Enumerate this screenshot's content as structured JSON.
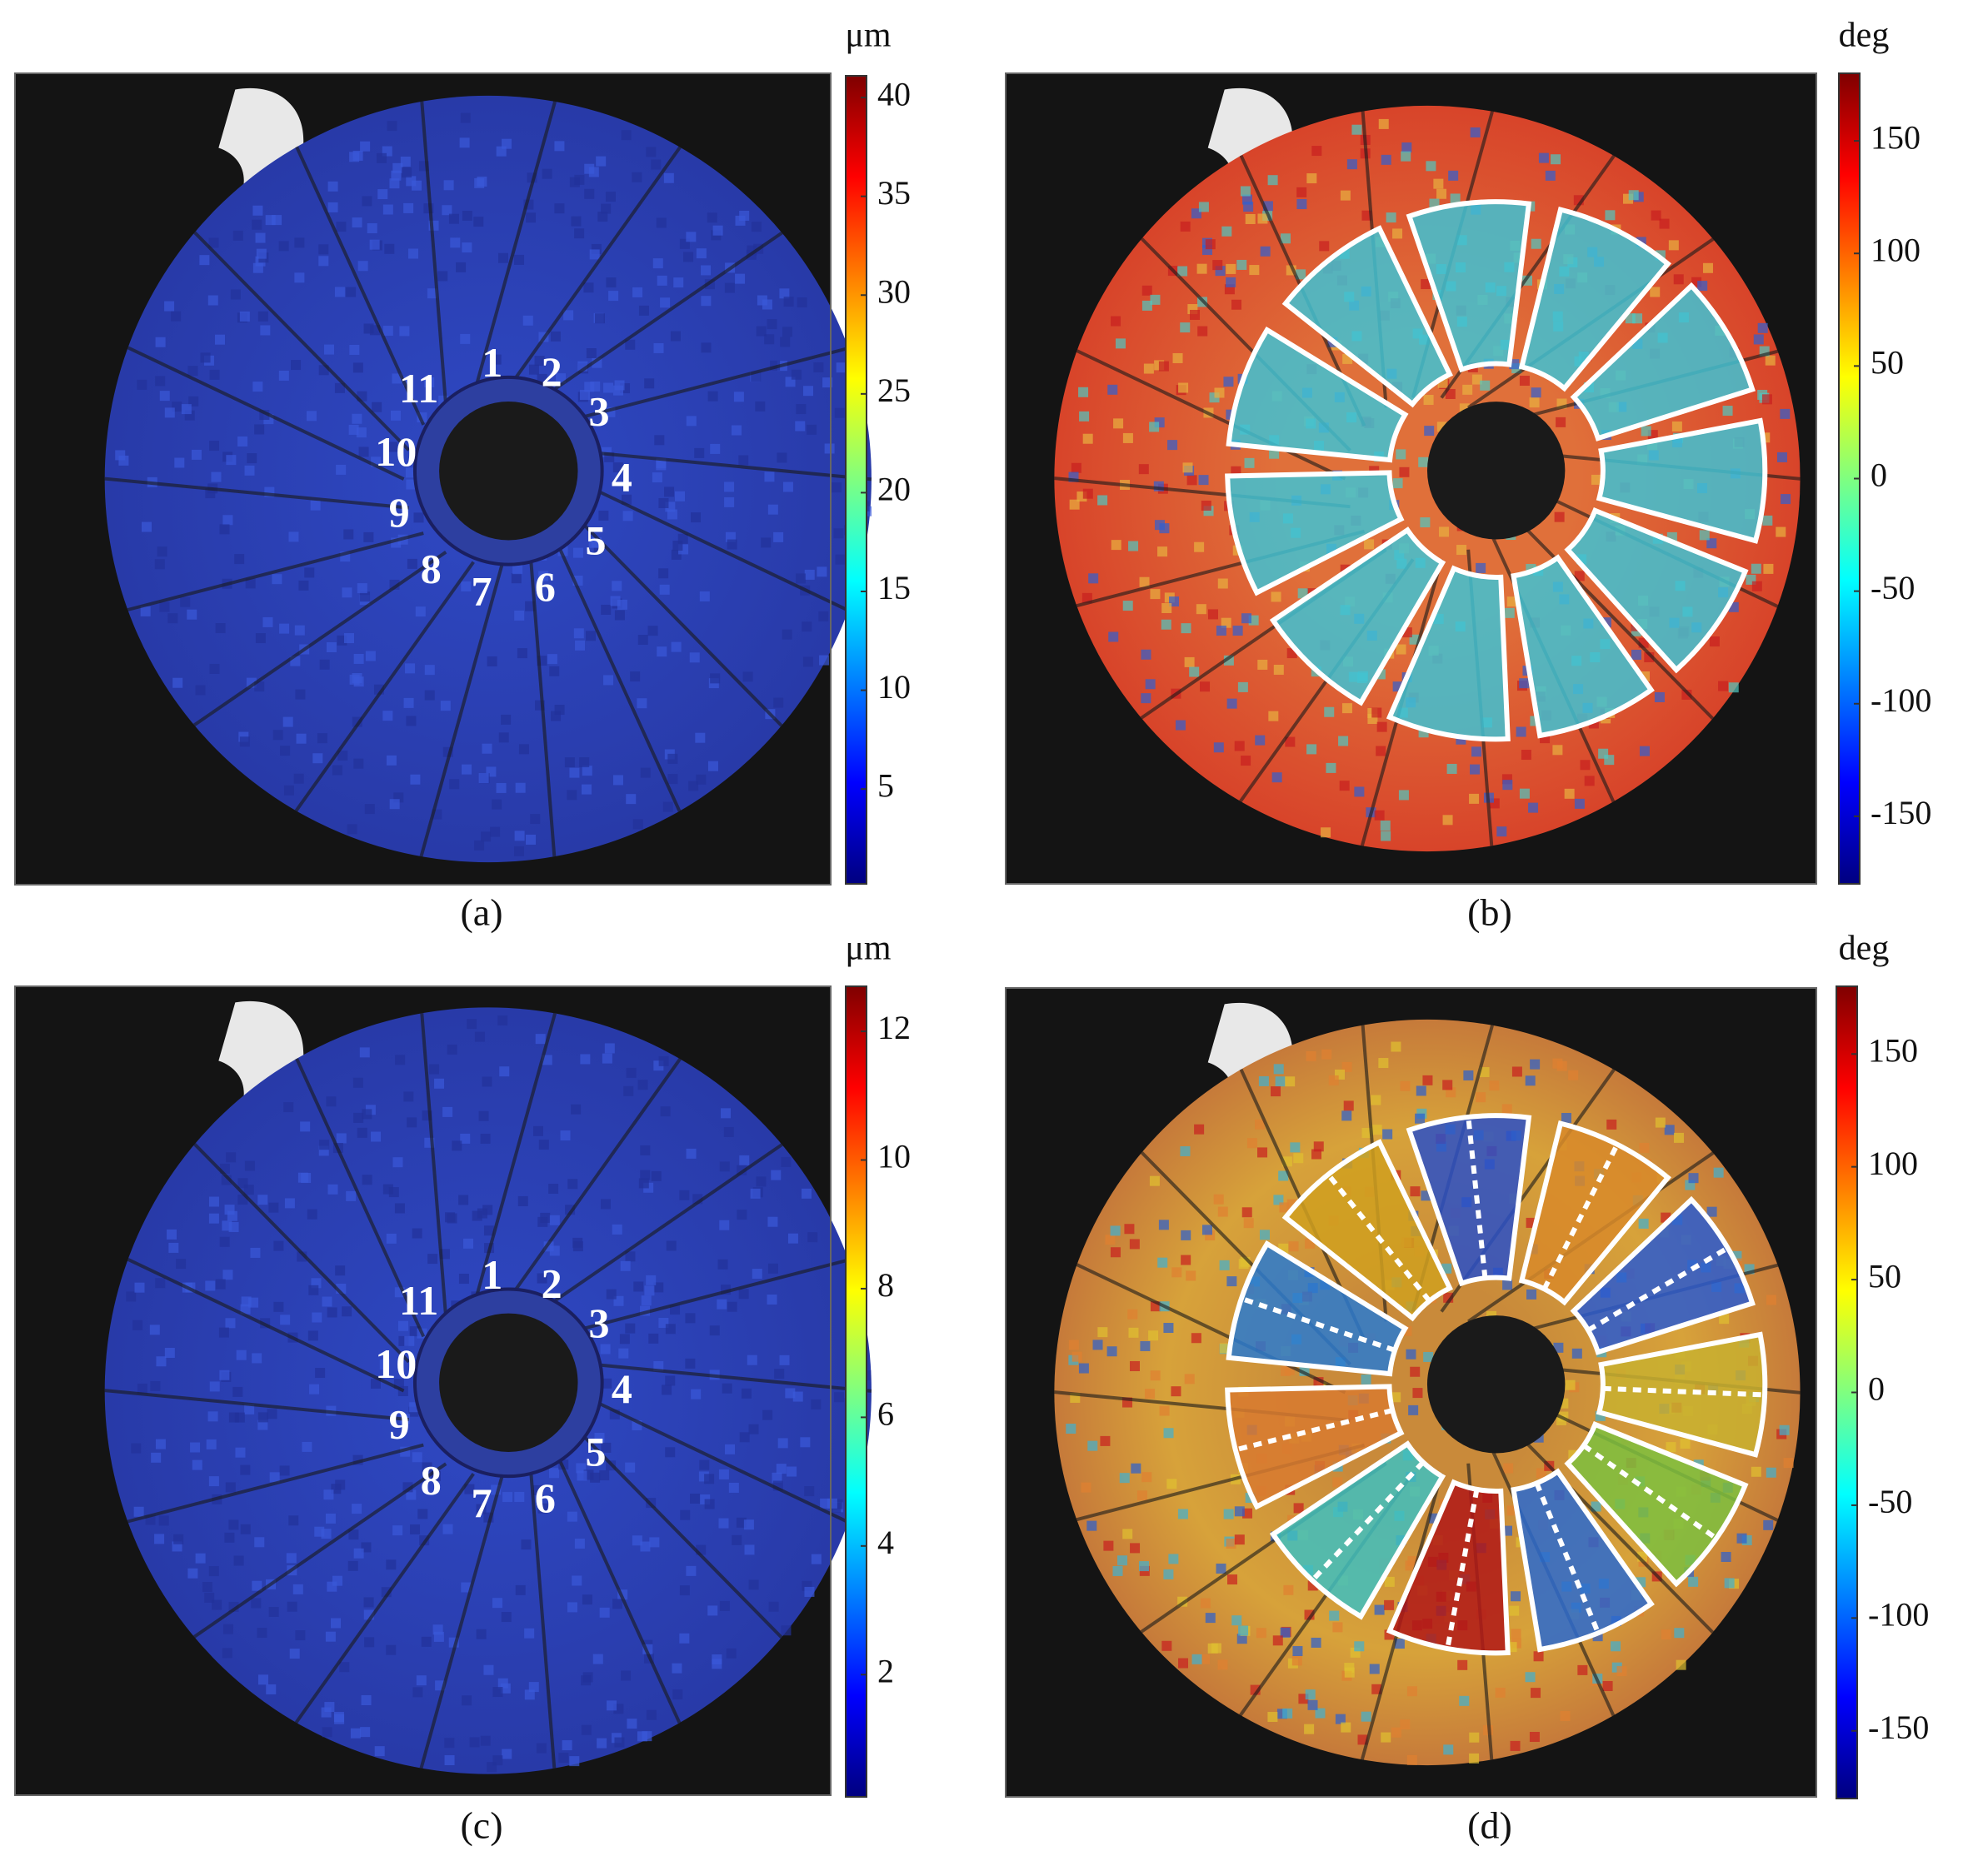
{
  "panels": [
    {
      "label": "(a)",
      "unit": "μm",
      "colorbar": {
        "range": [
          0.2,
          41.1
        ],
        "ticks": [
          5,
          10,
          15,
          20,
          25,
          30,
          35,
          40
        ]
      },
      "blade_numbers": [
        "1",
        "2",
        "3",
        "4",
        "5",
        "6",
        "7",
        "8",
        "9",
        "10",
        "11"
      ]
    },
    {
      "label": "(b)",
      "unit": "deg",
      "colorbar": {
        "range": [
          -180,
          180
        ],
        "ticks": [
          -150,
          -100,
          -50,
          0,
          50,
          100,
          150
        ]
      }
    },
    {
      "label": "(c)",
      "unit": "μm",
      "colorbar": {
        "range": [
          0.1,
          12.7
        ],
        "ticks": [
          2,
          4,
          6,
          8,
          10,
          12
        ]
      },
      "blade_numbers": [
        "1",
        "2",
        "3",
        "4",
        "5",
        "6",
        "7",
        "8",
        "9",
        "10",
        "11"
      ]
    },
    {
      "label": "(d)",
      "unit": "deg",
      "colorbar": {
        "range": [
          -180,
          180
        ],
        "ticks": [
          -150,
          -100,
          -50,
          0,
          50,
          100,
          150
        ]
      }
    }
  ]
}
